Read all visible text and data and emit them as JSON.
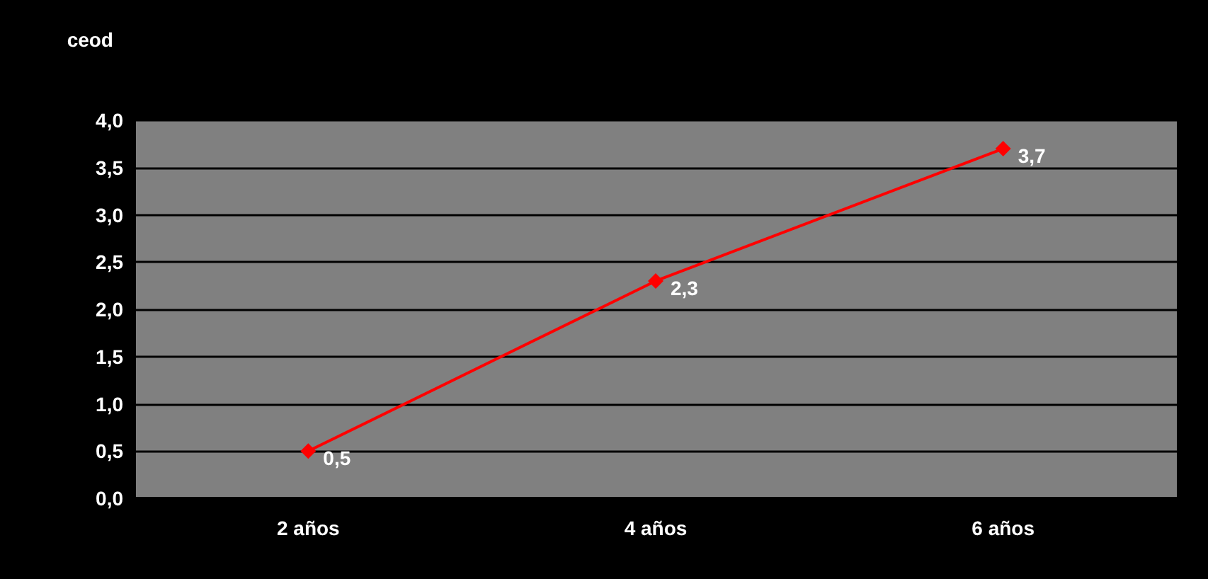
{
  "chart_data": {
    "type": "line",
    "ylabel": "ceod",
    "categories": [
      "2 años",
      "4 años",
      "6 años"
    ],
    "series": [
      {
        "color": "#ff0000",
        "values": [
          0.5,
          2.3,
          3.7
        ],
        "value_labels": [
          "0,5",
          "2,3",
          "3,7"
        ]
      }
    ],
    "ylim": [
      0,
      4
    ],
    "yticks": [
      {
        "value": 0,
        "label": "0,0"
      },
      {
        "value": 0.5,
        "label": "0,5"
      },
      {
        "value": 1,
        "label": "1,0"
      },
      {
        "value": 1.5,
        "label": "1,5"
      },
      {
        "value": 2,
        "label": "2,0"
      },
      {
        "value": 2.5,
        "label": "2,5"
      },
      {
        "value": 3,
        "label": "3,0"
      },
      {
        "value": 3.5,
        "label": "3,5"
      },
      {
        "value": 4,
        "label": "4,0"
      }
    ],
    "grid": "y",
    "marker": "diamond",
    "line_style": "solid"
  }
}
